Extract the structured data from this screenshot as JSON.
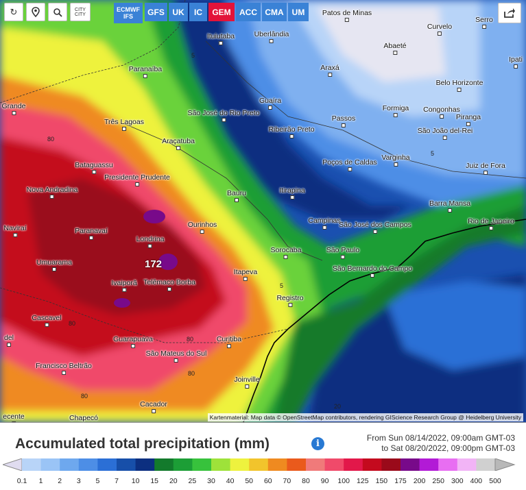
{
  "toolbar": {
    "refresh_icon": "refresh-icon",
    "pin_icon": "location-pin-icon",
    "zoom_icon": "zoom-icon",
    "city_label": "CITY CITY",
    "share_icon": "share-icon"
  },
  "models": [
    {
      "label": "ECMWF IFS",
      "active": false
    },
    {
      "label": "GFS",
      "active": false
    },
    {
      "label": "UK",
      "active": false
    },
    {
      "label": "IC",
      "active": false
    },
    {
      "label": "GEM",
      "active": true
    },
    {
      "label": "ACC",
      "active": false
    },
    {
      "label": "CMA",
      "active": false
    },
    {
      "label": "UM",
      "active": false
    }
  ],
  "cities": [
    "Patos de Minas",
    "Serro",
    "Curvelo",
    "Ituiutaba",
    "Uberlândia",
    "Abaeté",
    "Ipati",
    "Paranaíba",
    "Araxá",
    "Belo Horizonte",
    "Guaíra",
    "Formiga",
    "Congonhas",
    "Grande",
    "São José do Rio Preto",
    "Passos",
    "Piranga",
    "Três Lagoas",
    "Ribeirão Preto",
    "São João del-Rei",
    "Araçatuba",
    "Varginha",
    "Poços de Caldas",
    "Juiz de Fora",
    "Bataguassu",
    "Presidente Prudente",
    "Nova Andradina",
    "Bauru",
    "Itirapina",
    "Barra Mansa",
    "Campinas",
    "São José dos Campos",
    "Rio de Janeiro",
    "Ourinhos",
    "Naviraí",
    "Paranavaí",
    "Londrina",
    "Sorocaba",
    "São Paulo",
    "Umuarama",
    "São Bernardo do Campo",
    "Itapeva",
    "Ivaiporã",
    "Telêmaco Borba",
    "Registro",
    "Cascavel",
    "del",
    "Guarapuava",
    "Curitiba",
    "São Mateus do Sul",
    "Francisco Beltrão",
    "Joinville",
    "Cacador",
    "Chapecó",
    "ecente"
  ],
  "contour_labels": [
    "5",
    "5",
    "80",
    "80",
    "80",
    "80",
    "80",
    "5",
    "20"
  ],
  "max_value": "172",
  "attribution": "Kartenmaterial: Map data © OpenStreetMap contributors, rendering GIScience Research Group @ Heidelberg University",
  "legend": {
    "title": "Accumulated total precipitation (mm)",
    "info_icon": "info-icon",
    "range_from": "From Sun 08/14/2022, 09:00am GMT-03",
    "range_to": "to Sat 08/20/2022, 09:00pm GMT-03",
    "ticks": [
      "0.1",
      "1",
      "2",
      "3",
      "5",
      "7",
      "10",
      "15",
      "20",
      "25",
      "30",
      "40",
      "50",
      "60",
      "70",
      "80",
      "90",
      "100",
      "125",
      "150",
      "175",
      "200",
      "250",
      "300",
      "400",
      "500"
    ],
    "colors": [
      "#e0dcf0",
      "#b8d4f8",
      "#9ac4f6",
      "#6ea8ee",
      "#4d8ee6",
      "#2b6fd6",
      "#174fa9",
      "#0c2f80",
      "#137a2c",
      "#1c9e36",
      "#37c23c",
      "#9ee23a",
      "#eef23e",
      "#f2c42c",
      "#ef8a20",
      "#ea5a1c",
      "#f07a7a",
      "#f04a6a",
      "#e2184a",
      "#c40a1e",
      "#9a0a1a",
      "#780a8a",
      "#b21ad6",
      "#e86ef2",
      "#f2b4f6",
      "#d0d0d0",
      "#b8b8b8"
    ]
  }
}
